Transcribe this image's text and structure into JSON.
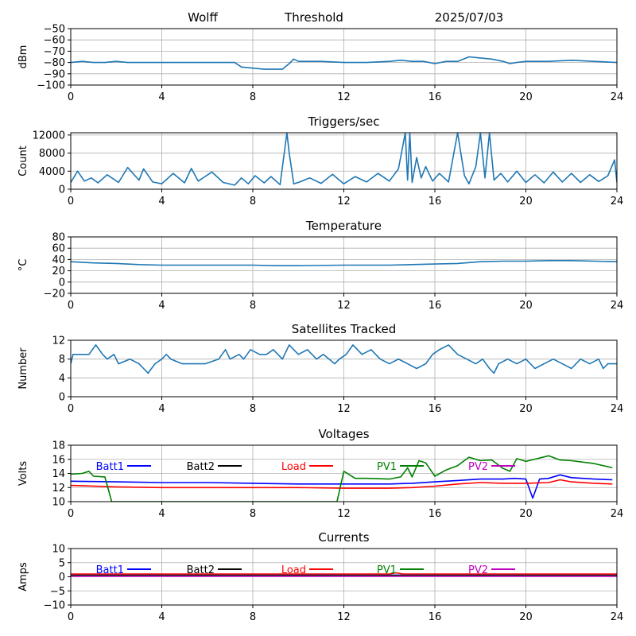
{
  "header": {
    "station": "Wolff",
    "label": "Threshold",
    "date": "2025/07/03"
  },
  "chart_data": [
    {
      "id": "threshold",
      "type": "line",
      "title": "",
      "ylabel": "dBm",
      "xlim": [
        0,
        24
      ],
      "ylim": [
        -100,
        -50
      ],
      "xticks": [
        0,
        4,
        8,
        12,
        16,
        20,
        24
      ],
      "yticks": [
        -100,
        -90,
        -80,
        -70,
        -60,
        -50
      ],
      "grid": true,
      "series": [
        {
          "color": "#1f77b4",
          "x": [
            0,
            0.5,
            1,
            1.5,
            2,
            2.5,
            3,
            4,
            5,
            6,
            7,
            7.2,
            7.5,
            8,
            8.5,
            9,
            9.3,
            9.6,
            9.8,
            10,
            10.5,
            11,
            12,
            13,
            14,
            14.5,
            15,
            15.5,
            16,
            16.5,
            17,
            17.5,
            18,
            18.5,
            19,
            19.3,
            19.6,
            20,
            21,
            22,
            23,
            24
          ],
          "y": [
            -80,
            -79,
            -80,
            -80,
            -79,
            -80,
            -80,
            -80,
            -80,
            -80,
            -80,
            -80,
            -84,
            -85,
            -86,
            -86,
            -86,
            -81,
            -77,
            -79,
            -79,
            -79,
            -80,
            -80,
            -79,
            -78,
            -79,
            -79,
            -81,
            -79,
            -79,
            -75,
            -76,
            -77,
            -79,
            -81,
            -80,
            -79,
            -79,
            -78,
            -79,
            -80
          ]
        }
      ]
    },
    {
      "id": "triggers",
      "type": "line",
      "title": "Triggers/sec",
      "ylabel": "Count",
      "xlim": [
        0,
        24
      ],
      "ylim": [
        0,
        12500
      ],
      "xticks": [
        0,
        4,
        8,
        12,
        16,
        20,
        24
      ],
      "yticks": [
        0,
        4000,
        8000,
        12000
      ],
      "grid": true,
      "series": [
        {
          "color": "#1f77b4",
          "x": [
            0,
            0.3,
            0.6,
            0.9,
            1.2,
            1.6,
            2.1,
            2.5,
            3.0,
            3.2,
            3.6,
            4.0,
            4.5,
            5.0,
            5.3,
            5.6,
            6.2,
            6.7,
            7.2,
            7.5,
            7.8,
            8.1,
            8.5,
            8.8,
            9.2,
            9.5,
            9.6,
            9.8,
            10.0,
            10.5,
            11.0,
            11.5,
            12.0,
            12.5,
            13.0,
            13.5,
            14.0,
            14.4,
            14.7,
            14.8,
            14.9,
            15.0,
            15.2,
            15.4,
            15.6,
            15.9,
            16.2,
            16.6,
            17.0,
            17.3,
            17.5,
            17.8,
            18.0,
            18.2,
            18.4,
            18.6,
            18.9,
            19.2,
            19.6,
            20.0,
            20.4,
            20.8,
            21.2,
            21.6,
            22.0,
            22.4,
            22.8,
            23.2,
            23.6,
            23.9,
            24.0
          ],
          "y": [
            1500,
            4000,
            1800,
            2500,
            1400,
            3200,
            1500,
            4800,
            2000,
            4500,
            1600,
            1200,
            3500,
            1400,
            4600,
            1800,
            3800,
            1500,
            900,
            2500,
            1200,
            3000,
            1400,
            2800,
            1000,
            12500,
            8000,
            1200,
            1500,
            2500,
            1300,
            3300,
            1200,
            2800,
            1600,
            3500,
            1800,
            4500,
            12500,
            2000,
            12500,
            1500,
            7000,
            2500,
            5000,
            1800,
            3500,
            1600,
            12500,
            3000,
            1200,
            5000,
            12500,
            2500,
            12500,
            2000,
            3500,
            1600,
            4000,
            1500,
            3200,
            1400,
            3800,
            1600,
            3500,
            1500,
            3200,
            1700,
            3000,
            6500,
            1500
          ]
        }
      ]
    },
    {
      "id": "temperature",
      "type": "line",
      "title": "Temperature",
      "ylabel": "°C",
      "xlim": [
        0,
        24
      ],
      "ylim": [
        -20,
        80
      ],
      "xticks": [
        0,
        4,
        8,
        12,
        16,
        20,
        24
      ],
      "yticks": [
        -20,
        0,
        20,
        40,
        60,
        80
      ],
      "grid": true,
      "series": [
        {
          "color": "#1f77b4",
          "x": [
            0,
            1,
            2,
            3,
            4,
            6,
            8,
            9,
            10,
            12,
            14,
            15,
            16,
            17,
            18,
            19,
            20,
            21,
            22,
            23,
            24
          ],
          "y": [
            36,
            34,
            33,
            31,
            30,
            30,
            30,
            29,
            29,
            30,
            30,
            31,
            32,
            33,
            36,
            37,
            37,
            38,
            38,
            37,
            36
          ]
        }
      ]
    },
    {
      "id": "satellites",
      "type": "line",
      "title": "Satellites Tracked",
      "ylabel": "Number",
      "xlim": [
        0,
        24
      ],
      "ylim": [
        0,
        12
      ],
      "xticks": [
        0,
        4,
        8,
        12,
        16,
        20,
        24
      ],
      "yticks": [
        0,
        4,
        8,
        12
      ],
      "grid": true,
      "series": [
        {
          "color": "#1f77b4",
          "x": [
            0,
            0.1,
            0.8,
            1.1,
            1.4,
            1.6,
            1.9,
            2.1,
            2.6,
            3.0,
            3.2,
            3.4,
            3.7,
            4.0,
            4.2,
            4.4,
            4.9,
            5.1,
            5.4,
            5.9,
            6.5,
            6.8,
            7.0,
            7.4,
            7.6,
            7.9,
            8.3,
            8.6,
            8.9,
            9.3,
            9.6,
            10.0,
            10.4,
            10.8,
            11.1,
            11.6,
            11.8,
            12.1,
            12.4,
            12.8,
            13.2,
            13.6,
            14.0,
            14.4,
            14.8,
            15.2,
            15.6,
            15.9,
            16.2,
            16.6,
            17.0,
            17.4,
            17.8,
            18.1,
            18.4,
            18.6,
            18.8,
            19.2,
            19.6,
            20.0,
            20.4,
            20.8,
            21.2,
            21.6,
            22.0,
            22.4,
            22.8,
            23.2,
            23.4,
            23.6,
            24.0
          ],
          "y": [
            7,
            9,
            9,
            11,
            9,
            8,
            9,
            7,
            8,
            7,
            6,
            5,
            7,
            8,
            9,
            8,
            7,
            7,
            7,
            7,
            8,
            10,
            8,
            9,
            8,
            10,
            9,
            9,
            10,
            8,
            11,
            9,
            10,
            8,
            9,
            7,
            8,
            9,
            11,
            9,
            10,
            8,
            7,
            8,
            7,
            6,
            7,
            9,
            10,
            11,
            9,
            8,
            7,
            8,
            6,
            5,
            7,
            8,
            7,
            8,
            6,
            7,
            8,
            7,
            6,
            8,
            7,
            8,
            6,
            7,
            7
          ]
        }
      ]
    },
    {
      "id": "voltages",
      "type": "line",
      "title": "Voltages",
      "ylabel": "Volts",
      "xlim": [
        0,
        24
      ],
      "ylim": [
        10,
        18
      ],
      "xticks": [
        0,
        4,
        8,
        12,
        16,
        20,
        24
      ],
      "yticks": [
        10,
        12,
        14,
        16,
        18
      ],
      "grid": true,
      "series": [
        {
          "name": "Batt1",
          "color": "#0000ff",
          "x": [
            0,
            2,
            4,
            6,
            8,
            10,
            12,
            14,
            15,
            16,
            17,
            18,
            19,
            19.5,
            20,
            20.3,
            20.6,
            21,
            21.5,
            22,
            23,
            23.8
          ],
          "y": [
            12.9,
            12.8,
            12.7,
            12.7,
            12.6,
            12.5,
            12.5,
            12.5,
            12.6,
            12.8,
            13.0,
            13.2,
            13.2,
            13.3,
            13.2,
            10.5,
            13.2,
            13.3,
            13.8,
            13.4,
            13.2,
            13.1
          ]
        },
        {
          "name": "Batt2",
          "color": "#000000",
          "x": [],
          "y": []
        },
        {
          "name": "Load",
          "color": "#ff0000",
          "x": [
            0,
            2,
            4,
            6,
            8,
            10,
            12,
            14,
            15,
            16,
            17,
            18,
            19,
            20,
            21,
            21.5,
            22,
            23,
            23.8
          ],
          "y": [
            12.3,
            12.1,
            12.0,
            12.0,
            12.0,
            12.0,
            11.9,
            11.9,
            12.0,
            12.2,
            12.5,
            12.7,
            12.6,
            12.6,
            12.7,
            13.1,
            12.8,
            12.6,
            12.5
          ]
        },
        {
          "name": "PV1",
          "color": "#008000",
          "x": [
            0,
            0.5,
            0.8,
            1,
            1.5,
            1.8,
            11.7,
            12,
            12.5,
            13,
            14,
            14.5,
            14.8,
            15,
            15.3,
            15.6,
            16,
            16.5,
            17,
            17.5,
            18,
            18.5,
            19,
            19.3,
            19.6,
            20,
            21,
            21.5,
            22,
            23,
            23.8
          ],
          "y": [
            13.9,
            14.0,
            14.3,
            13.6,
            13.5,
            10.0,
            10.0,
            14.3,
            13.3,
            13.3,
            13.2,
            13.5,
            14.8,
            13.5,
            15.8,
            15.5,
            13.6,
            14.5,
            15.1,
            16.3,
            15.8,
            15.9,
            14.7,
            14.3,
            16.1,
            15.7,
            16.5,
            15.9,
            15.8,
            15.4,
            14.8
          ]
        },
        {
          "name": "PV2",
          "color": "#bf00bf",
          "x": [],
          "y": []
        }
      ]
    },
    {
      "id": "currents",
      "type": "line",
      "title": "Currents",
      "ylabel": "Amps",
      "xlim": [
        0,
        24
      ],
      "ylim": [
        -10,
        10
      ],
      "xticks": [
        0,
        4,
        8,
        12,
        16,
        20,
        24
      ],
      "yticks": [
        -10,
        -5,
        0,
        5,
        10
      ],
      "grid": true,
      "series": [
        {
          "name": "Batt1",
          "color": "#0000ff",
          "x": [
            0,
            24
          ],
          "y": [
            0.6,
            0.6
          ]
        },
        {
          "name": "Batt2",
          "color": "#000000",
          "x": [
            0,
            24
          ],
          "y": [
            0.5,
            0.5
          ]
        },
        {
          "name": "Load",
          "color": "#ff0000",
          "x": [
            0,
            12,
            14,
            14.3,
            14.6,
            24
          ],
          "y": [
            1.0,
            1.0,
            1.0,
            1.4,
            1.0,
            1.0
          ]
        },
        {
          "name": "PV1",
          "color": "#008000",
          "x": [
            0,
            24
          ],
          "y": [
            0.3,
            0.3
          ]
        },
        {
          "name": "PV2",
          "color": "#bf00bf",
          "x": [
            0,
            24
          ],
          "y": [
            0.2,
            0.2
          ]
        }
      ]
    }
  ]
}
